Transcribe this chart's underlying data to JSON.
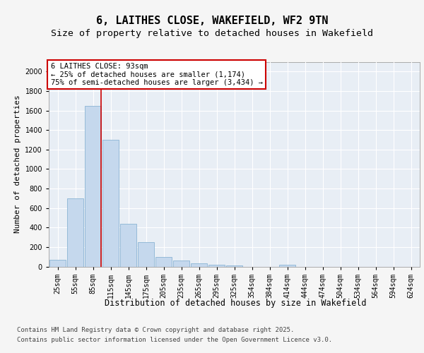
{
  "title": "6, LAITHES CLOSE, WAKEFIELD, WF2 9TN",
  "subtitle": "Size of property relative to detached houses in Wakefield",
  "xlabel": "Distribution of detached houses by size in Wakefield",
  "ylabel": "Number of detached properties",
  "categories": [
    "25sqm",
    "55sqm",
    "85sqm",
    "115sqm",
    "145sqm",
    "175sqm",
    "205sqm",
    "235sqm",
    "265sqm",
    "295sqm",
    "325sqm",
    "354sqm",
    "384sqm",
    "414sqm",
    "444sqm",
    "474sqm",
    "504sqm",
    "534sqm",
    "564sqm",
    "594sqm",
    "624sqm"
  ],
  "values": [
    70,
    700,
    1650,
    1300,
    440,
    250,
    95,
    60,
    35,
    20,
    10,
    0,
    0,
    15,
    0,
    0,
    0,
    0,
    0,
    0,
    0
  ],
  "bar_color": "#c5d8ed",
  "bar_edge_color": "#8ab4d4",
  "vline_x_index": 2,
  "vline_color": "#cc0000",
  "annotation_text": "6 LAITHES CLOSE: 93sqm\n← 25% of detached houses are smaller (1,174)\n75% of semi-detached houses are larger (3,434) →",
  "annotation_box_color": "#ffffff",
  "annotation_box_edge": "#cc0000",
  "ylim": [
    0,
    2100
  ],
  "yticks": [
    0,
    200,
    400,
    600,
    800,
    1000,
    1200,
    1400,
    1600,
    1800,
    2000
  ],
  "plot_bg_color": "#e8eef5",
  "fig_bg_color": "#f5f5f5",
  "grid_color": "#ffffff",
  "footer_line1": "Contains HM Land Registry data © Crown copyright and database right 2025.",
  "footer_line2": "Contains public sector information licensed under the Open Government Licence v3.0.",
  "title_fontsize": 11,
  "subtitle_fontsize": 9.5,
  "ylabel_fontsize": 8,
  "xlabel_fontsize": 8.5,
  "tick_fontsize": 7,
  "annotation_fontsize": 7.5,
  "footer_fontsize": 6.5
}
